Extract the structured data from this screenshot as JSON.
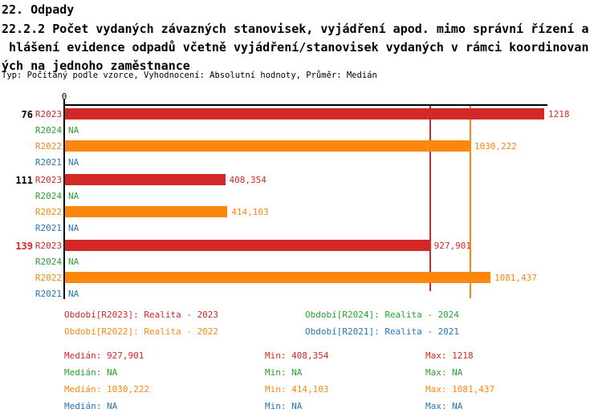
{
  "header": {
    "title": "22. Odpady",
    "subtitle_lines": [
      "22.2.2 Počet vydaných závazných stanovisek, vyjádření apod. mimo správní řízení a",
      " hlášení evidence odpadů včetně vyjádření/stanovisek vydaných v rámci koordinovan",
      "ých na jednoho zaměstnance"
    ],
    "meta": "Typ: Počítaný podle vzorce, Vyhodnocení: Absolutní hodnoty, Průměr: Medián"
  },
  "colors": {
    "R2023": "#d22826",
    "R2024": "#2aa12e",
    "R2022": "#fc870f",
    "R2021": "#2577b5",
    "axis": "#000000"
  },
  "chart_data": {
    "type": "bar",
    "orientation": "horizontal",
    "x_axis": {
      "origin_label": "0",
      "min": 0,
      "max": 1232,
      "gridlines": false
    },
    "series_order": [
      "R2023",
      "R2024",
      "R2022",
      "R2021"
    ],
    "groups": [
      {
        "label": "76",
        "label_emphasis": false,
        "bars": [
          {
            "series": "R2023",
            "value": 1218,
            "display": "1218"
          },
          {
            "series": "R2024",
            "value": null,
            "display": "NA"
          },
          {
            "series": "R2022",
            "value": 1030.222,
            "display": "1030,222"
          },
          {
            "series": "R2021",
            "value": null,
            "display": "NA"
          }
        ]
      },
      {
        "label": "111",
        "label_emphasis": false,
        "bars": [
          {
            "series": "R2023",
            "value": 408.354,
            "display": "408,354"
          },
          {
            "series": "R2024",
            "value": null,
            "display": "NA"
          },
          {
            "series": "R2022",
            "value": 414.103,
            "display": "414,103"
          },
          {
            "series": "R2021",
            "value": null,
            "display": "NA"
          }
        ]
      },
      {
        "label": "139",
        "label_emphasis": true,
        "bars": [
          {
            "series": "R2023",
            "value": 927.901,
            "display": "927,901"
          },
          {
            "series": "R2024",
            "value": null,
            "display": "NA"
          },
          {
            "series": "R2022",
            "value": 1081.437,
            "display": "1081,437"
          },
          {
            "series": "R2021",
            "value": null,
            "display": "NA"
          }
        ]
      }
    ],
    "median_lines": [
      {
        "series": "R2023",
        "value": 927.901
      },
      {
        "series": "R2022",
        "value": 1030.222
      }
    ]
  },
  "legend": {
    "items": [
      {
        "label": "Období[R2023]: Realita - 2023",
        "series": "R2023"
      },
      {
        "label": "Období[R2024]: Realita - 2024",
        "series": "R2024"
      },
      {
        "label": "Období[R2022]: Realita - 2022",
        "series": "R2022"
      },
      {
        "label": "Období[R2021]: Realita - 2021",
        "series": "R2021"
      }
    ]
  },
  "stats": {
    "labels": {
      "median": "Medián:",
      "min": "Min:",
      "max": "Max:"
    },
    "rows": [
      {
        "series": "R2023",
        "median": "927,901",
        "min": "408,354",
        "max": "1218"
      },
      {
        "series": "R2024",
        "median": "NA",
        "min": "NA",
        "max": "NA"
      },
      {
        "series": "R2022",
        "median": "1030,222",
        "min": "414,103",
        "max": "1081,437"
      },
      {
        "series": "R2021",
        "median": "NA",
        "min": "NA",
        "max": "NA"
      }
    ]
  }
}
